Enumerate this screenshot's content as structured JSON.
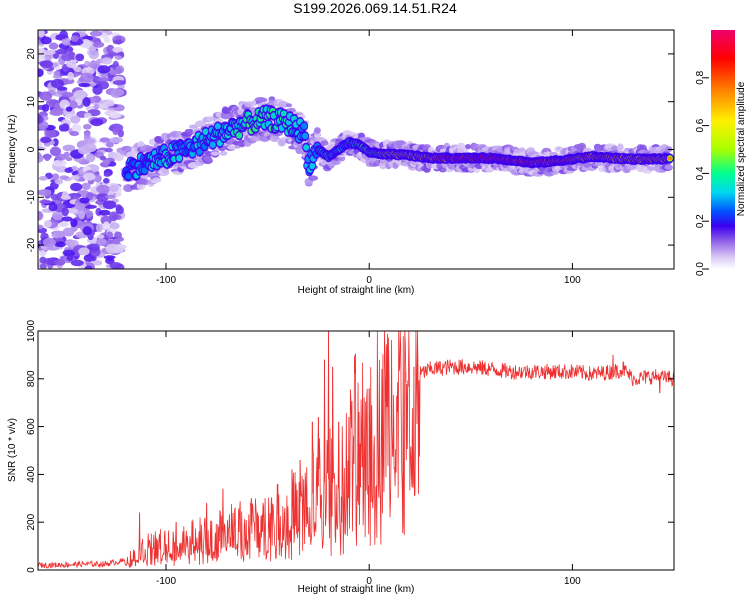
{
  "title": "S199.2026.069.14.51.R24",
  "chart_data": [
    {
      "type": "heatmap",
      "title": "S199.2026.069.14.51.R24",
      "xlabel": "Height of straight line (km)",
      "ylabel": "Frequency (Hz)",
      "xlim": [
        -163,
        150
      ],
      "ylim": [
        -25,
        25
      ],
      "xticks": [
        -100,
        0,
        100
      ],
      "yticks": [
        -20,
        -10,
        0,
        10,
        20
      ],
      "xtick_labels": [
        "-100",
        "0",
        "100"
      ],
      "ytick_labels": [
        "-20",
        "-10",
        "0",
        "10",
        "20"
      ],
      "colorbar": {
        "label": "Normalized spectral amplitude",
        "range": [
          0,
          1
        ],
        "ticks": [
          0.0,
          0.2,
          0.4,
          0.6,
          0.8
        ],
        "tick_labels": [
          "0.0",
          "0.2",
          "0.4",
          "0.6",
          "0.8"
        ],
        "colors": [
          "#ffffff",
          "#d9c8f5",
          "#8c5ce8",
          "#3a00f0",
          "#0050ff",
          "#00d8f0",
          "#00ff90",
          "#a8ff00",
          "#fff000",
          "#ff8000",
          "#ff0000",
          "#f0006e"
        ]
      },
      "ridge": {
        "name": "dominant frequency track",
        "x": [
          -120,
          -110,
          -100,
          -90,
          -80,
          -70,
          -60,
          -50,
          -40,
          -32,
          -30,
          -25,
          -20,
          -15,
          -10,
          -5,
          0,
          5,
          10,
          20,
          30,
          40,
          50,
          60,
          70,
          80,
          90,
          100,
          110,
          120,
          130,
          140,
          148
        ],
        "y": [
          -4,
          -3,
          -1.5,
          0,
          2,
          4,
          5.5,
          6.5,
          5.5,
          3.5,
          -3,
          0,
          -1.5,
          0,
          1.5,
          1,
          -0.5,
          -1,
          -1,
          -1.2,
          -1.8,
          -1.8,
          -1.8,
          -1.8,
          -2.2,
          -2.8,
          -2.5,
          -2,
          -1.5,
          -1.8,
          -2,
          -2,
          -2
        ],
        "amplitude": [
          0.3,
          0.3,
          0.35,
          0.3,
          0.35,
          0.35,
          0.4,
          0.4,
          0.4,
          0.3,
          0.3,
          0.35,
          0.35,
          0.35,
          0.35,
          0.4,
          0.45,
          0.5,
          0.6,
          0.65,
          0.75,
          0.95,
          0.95,
          0.9,
          0.85,
          0.8,
          0.8,
          0.75,
          0.75,
          0.7,
          0.7,
          0.7,
          0.65
        ]
      },
      "noise_region": {
        "x_range": [
          -163,
          -122
        ],
        "amplitude": 0.15
      }
    },
    {
      "type": "line",
      "xlabel": "Height of straight line (km)",
      "ylabel": "SNR (10 * v/v)",
      "xlim": [
        -163,
        150
      ],
      "ylim": [
        0,
        1000
      ],
      "xticks": [
        -100,
        0,
        100
      ],
      "yticks": [
        0,
        200,
        400,
        600,
        800,
        1000
      ],
      "xtick_labels": [
        "-100",
        "0",
        "100"
      ],
      "ytick_labels": [
        "0",
        "200",
        "400",
        "600",
        "800",
        "1000"
      ],
      "series": [
        {
          "name": "SNR",
          "color": "#ee3030",
          "x": [
            -163,
            -150,
            -140,
            -130,
            -120,
            -115,
            -110,
            -105,
            -100,
            -95,
            -90,
            -85,
            -80,
            -75,
            -70,
            -65,
            -60,
            -55,
            -50,
            -45,
            -40,
            -35,
            -30,
            -25,
            -20,
            -15,
            -12,
            -8,
            -5,
            0,
            5,
            10,
            15,
            20,
            25,
            30,
            40,
            50,
            60,
            70,
            80,
            90,
            100,
            110,
            120,
            125,
            130,
            140,
            150
          ],
          "y": [
            20,
            22,
            25,
            25,
            40,
            70,
            100,
            110,
            120,
            110,
            130,
            140,
            150,
            160,
            170,
            190,
            180,
            200,
            220,
            230,
            250,
            280,
            300,
            350,
            380,
            340,
            450,
            560,
            600,
            620,
            680,
            720,
            760,
            800,
            820,
            840,
            850,
            850,
            840,
            830,
            830,
            830,
            830,
            820,
            830,
            840,
            800,
            810,
            800
          ]
        }
      ],
      "spikes": {
        "x": [
          -113,
          -95,
          -80,
          -72,
          -66,
          -58,
          -55,
          -45,
          -38,
          -34,
          -28,
          -25,
          -22,
          -20,
          -18,
          -15,
          -10,
          -5,
          0,
          8,
          18,
          22,
          120,
          125,
          143
        ],
        "y": [
          240,
          200,
          280,
          340,
          260,
          300,
          240,
          360,
          420,
          460,
          620,
          640,
          880,
          1000,
          850,
          620,
          640,
          660,
          760,
          800,
          830,
          850,
          900,
          870,
          740
        ]
      }
    }
  ]
}
